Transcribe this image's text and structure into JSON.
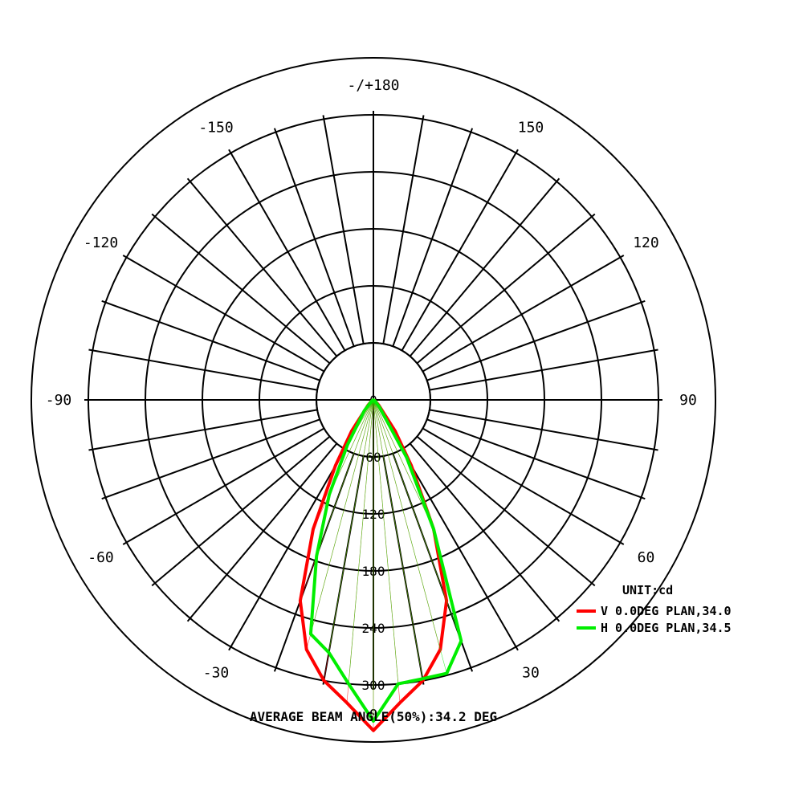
{
  "chart_data": {
    "type": "polar",
    "unit_label": "UNIT:cd",
    "footer": "AVERAGE BEAM ANGLE(50%):34.2 DEG",
    "rmax": 360,
    "radial_ticks": [
      "0",
      "60",
      "120",
      "180",
      "240",
      "300"
    ],
    "radial_tick_values": [
      0,
      60,
      120,
      180,
      240,
      300
    ],
    "angle_ticks": [
      {
        "text": "-/+180",
        "angle": 180
      },
      {
        "text": "150",
        "angle": 150
      },
      {
        "text": "-150",
        "angle": -150
      },
      {
        "text": "120",
        "angle": 120
      },
      {
        "text": "-120",
        "angle": -120
      },
      {
        "text": "90",
        "angle": 90
      },
      {
        "text": "-90",
        "angle": -90
      },
      {
        "text": "60",
        "angle": 60
      },
      {
        "text": "-60",
        "angle": -60
      },
      {
        "text": "30",
        "angle": 30
      },
      {
        "text": "-30",
        "angle": -30
      },
      {
        "text": "0",
        "angle": 0
      }
    ],
    "series": [
      {
        "name": "V 0.0DEG PLAN,34.0",
        "color": "#ff0000",
        "angles": [
          -90,
          -60,
          -45,
          -35,
          -30,
          -25,
          -20,
          -15,
          -10,
          -5,
          0,
          5,
          10,
          15,
          20,
          25,
          30,
          35,
          45,
          60,
          90
        ],
        "values": [
          0,
          2,
          8,
          40,
          80,
          150,
          225,
          272,
          300,
          320,
          348,
          320,
          300,
          272,
          225,
          150,
          80,
          40,
          8,
          2,
          0
        ]
      },
      {
        "name": "H 0.0DEG PLAN,34.5",
        "color": "#00ee00",
        "angles": [
          -90,
          -60,
          -40,
          -30,
          -25,
          -20,
          -15,
          -10,
          -5,
          0,
          5,
          10,
          15,
          20,
          25,
          30,
          40,
          60,
          90
        ],
        "values": [
          0,
          2,
          15,
          55,
          110,
          175,
          255,
          270,
          300,
          338,
          300,
          298,
          298,
          270,
          150,
          70,
          10,
          2,
          0
        ]
      }
    ]
  }
}
